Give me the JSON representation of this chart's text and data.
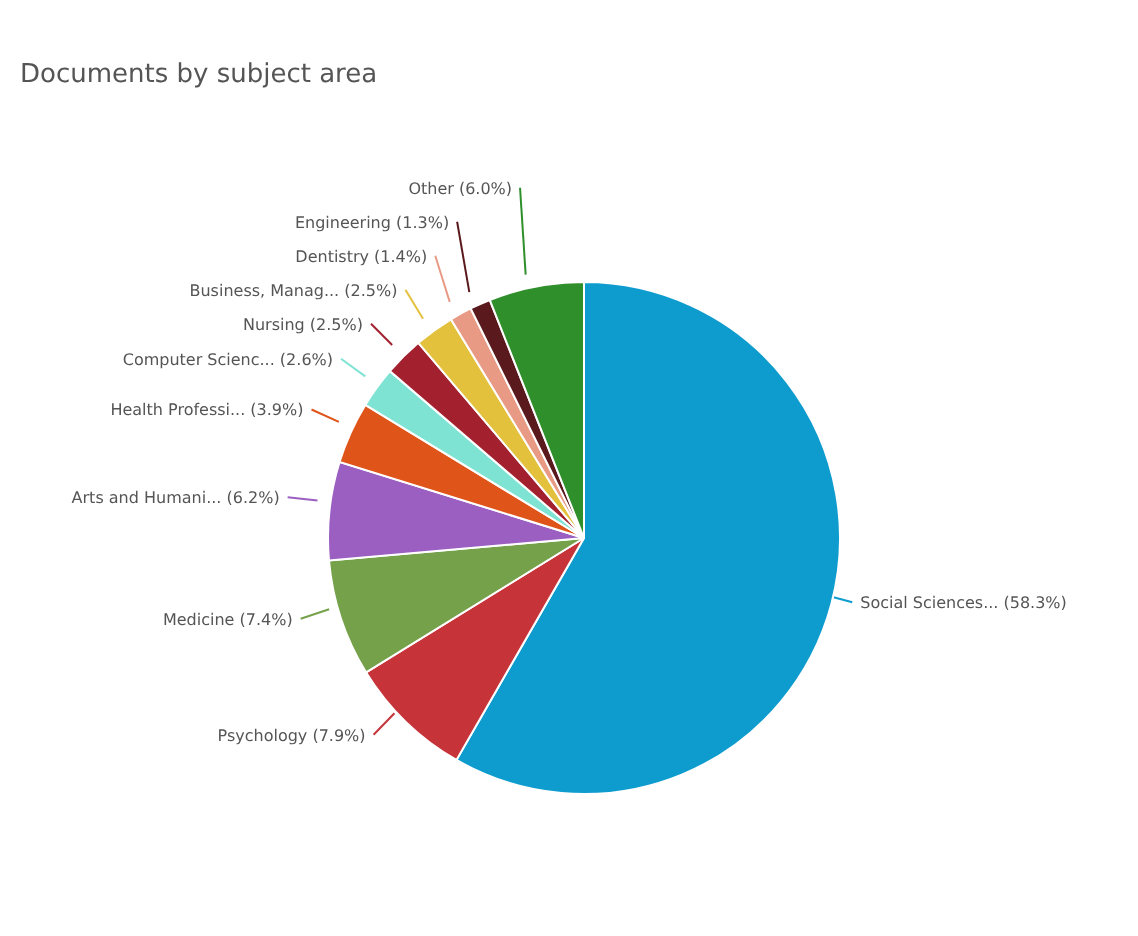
{
  "chart_data": {
    "type": "pie",
    "title": "Documents by subject area",
    "categories": [
      "Social Sciences...",
      "Psychology",
      "Medicine",
      "Arts and Humani...",
      "Health Professi...",
      "Computer Scienc...",
      "Nursing",
      "Business, Manag...",
      "Dentistry",
      "Engineering",
      "Other"
    ],
    "values": [
      58.3,
      7.9,
      7.4,
      6.2,
      3.9,
      2.6,
      2.5,
      2.5,
      1.4,
      1.3,
      6.0
    ],
    "value_labels": [
      "(58.3%)",
      "(7.9%)",
      "(7.4%)",
      "(6.2%)",
      "(3.9%)",
      "(2.6%)",
      "(2.5%)",
      "(2.5%)",
      "(1.4%)",
      "(1.3%)",
      "(6.0%)"
    ],
    "colors": [
      "#0e9ccf",
      "#c6343a",
      "#76a14b",
      "#9a5fc0",
      "#df5419",
      "#7ee3d3",
      "#a3202f",
      "#e3c13d",
      "#e89a85",
      "#5a1a1d",
      "#2f8f2a"
    ]
  }
}
